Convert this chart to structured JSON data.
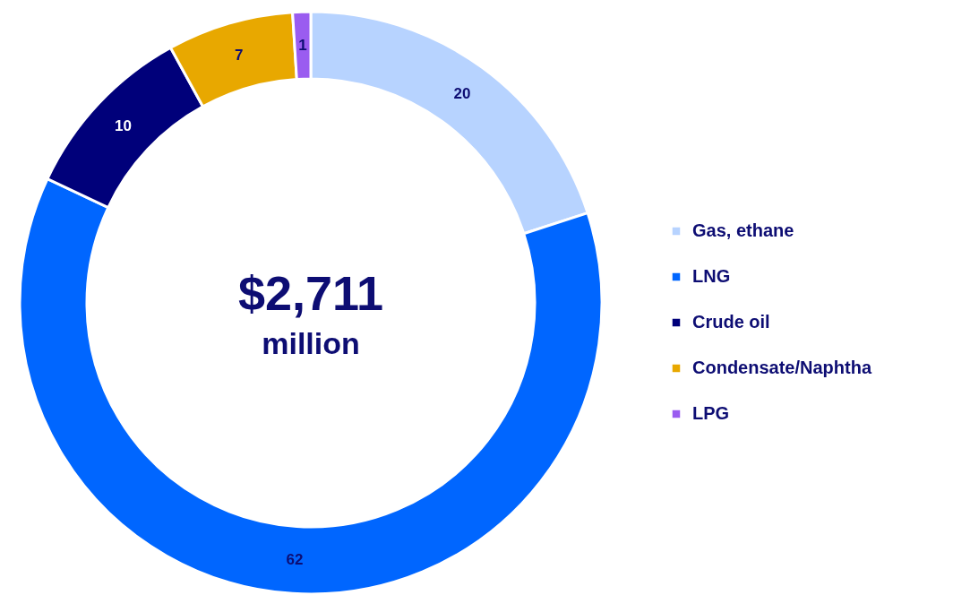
{
  "chart_data": {
    "type": "donut",
    "categories": [
      "Gas, ethane",
      "LNG",
      "Crude oil",
      "Condensate/Naphtha",
      "LPG"
    ],
    "values": [
      20,
      62,
      10,
      7,
      1
    ],
    "colors": [
      "#b7d3ff",
      "#0066ff",
      "#00007a",
      "#e8a800",
      "#9a5cf0"
    ],
    "data_labels": true,
    "legend": "right",
    "annotations": [
      "$2,711",
      "million"
    ]
  }
}
